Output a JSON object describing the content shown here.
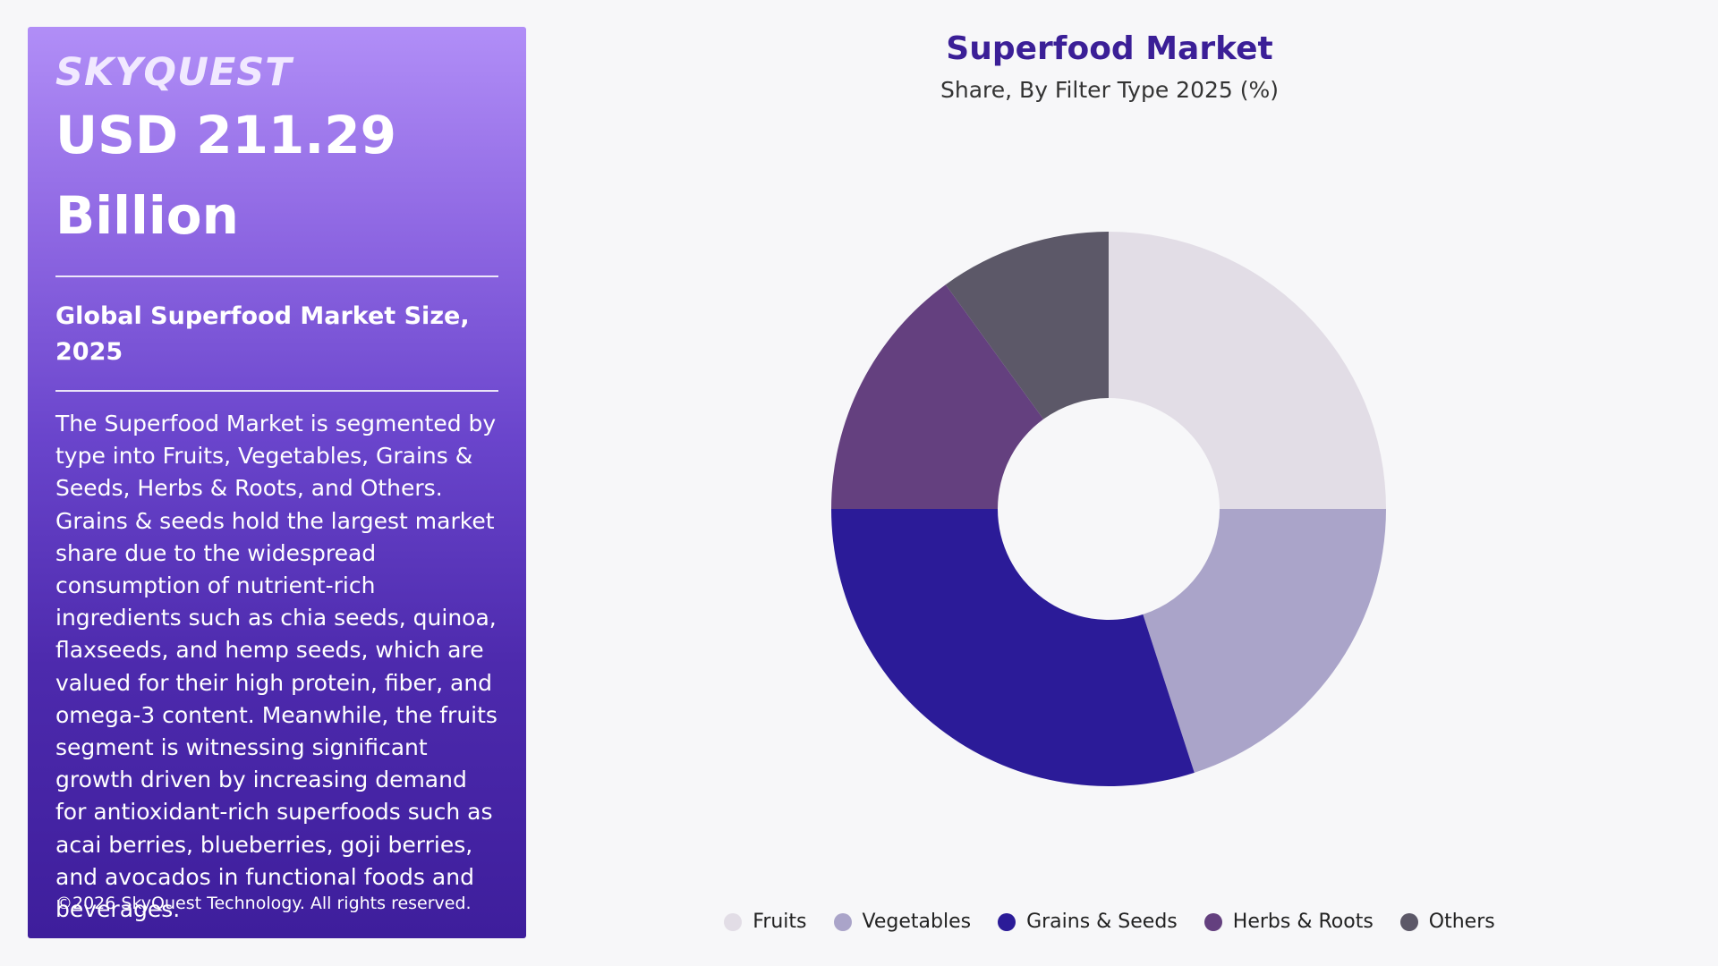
{
  "panel": {
    "logo": "SKYQUEST",
    "value_line1": "USD 211.29",
    "value_line2": "Billion",
    "subtitle": "Global Superfood Market Size, 2025",
    "description": "The Superfood Market is segmented by type into Fruits, Vegetables, Grains & Seeds, Herbs & Roots, and Others. Grains & seeds hold the largest market share due to the widespread consumption of nutrient-rich ingredients such as chia seeds, quinoa, flaxseeds, and hemp seeds, which are valued for their high protein, fiber, and omega-3 content. Meanwhile, the fruits segment is witnessing significant growth driven by increasing demand for antioxidant-rich superfoods such as acai berries, blueberries, goji berries, and avocados in functional foods and beverages.",
    "copyright": "©2026 SkyQuest Technology. All rights reserved."
  },
  "chart_data": {
    "type": "pie",
    "title": "Superfood Market",
    "subtitle": "Share, By Filter Type 2025 (%)",
    "categories": [
      "Fruits",
      "Vegetables",
      "Grains & Seeds",
      "Herbs & Roots",
      "Others"
    ],
    "values": [
      25,
      20,
      30,
      15,
      10
    ],
    "colors": [
      "#e2dde6",
      "#aaa4c9",
      "#2b1b98",
      "#64407f",
      "#5c5868"
    ],
    "donut": true,
    "legend": "bottom"
  }
}
